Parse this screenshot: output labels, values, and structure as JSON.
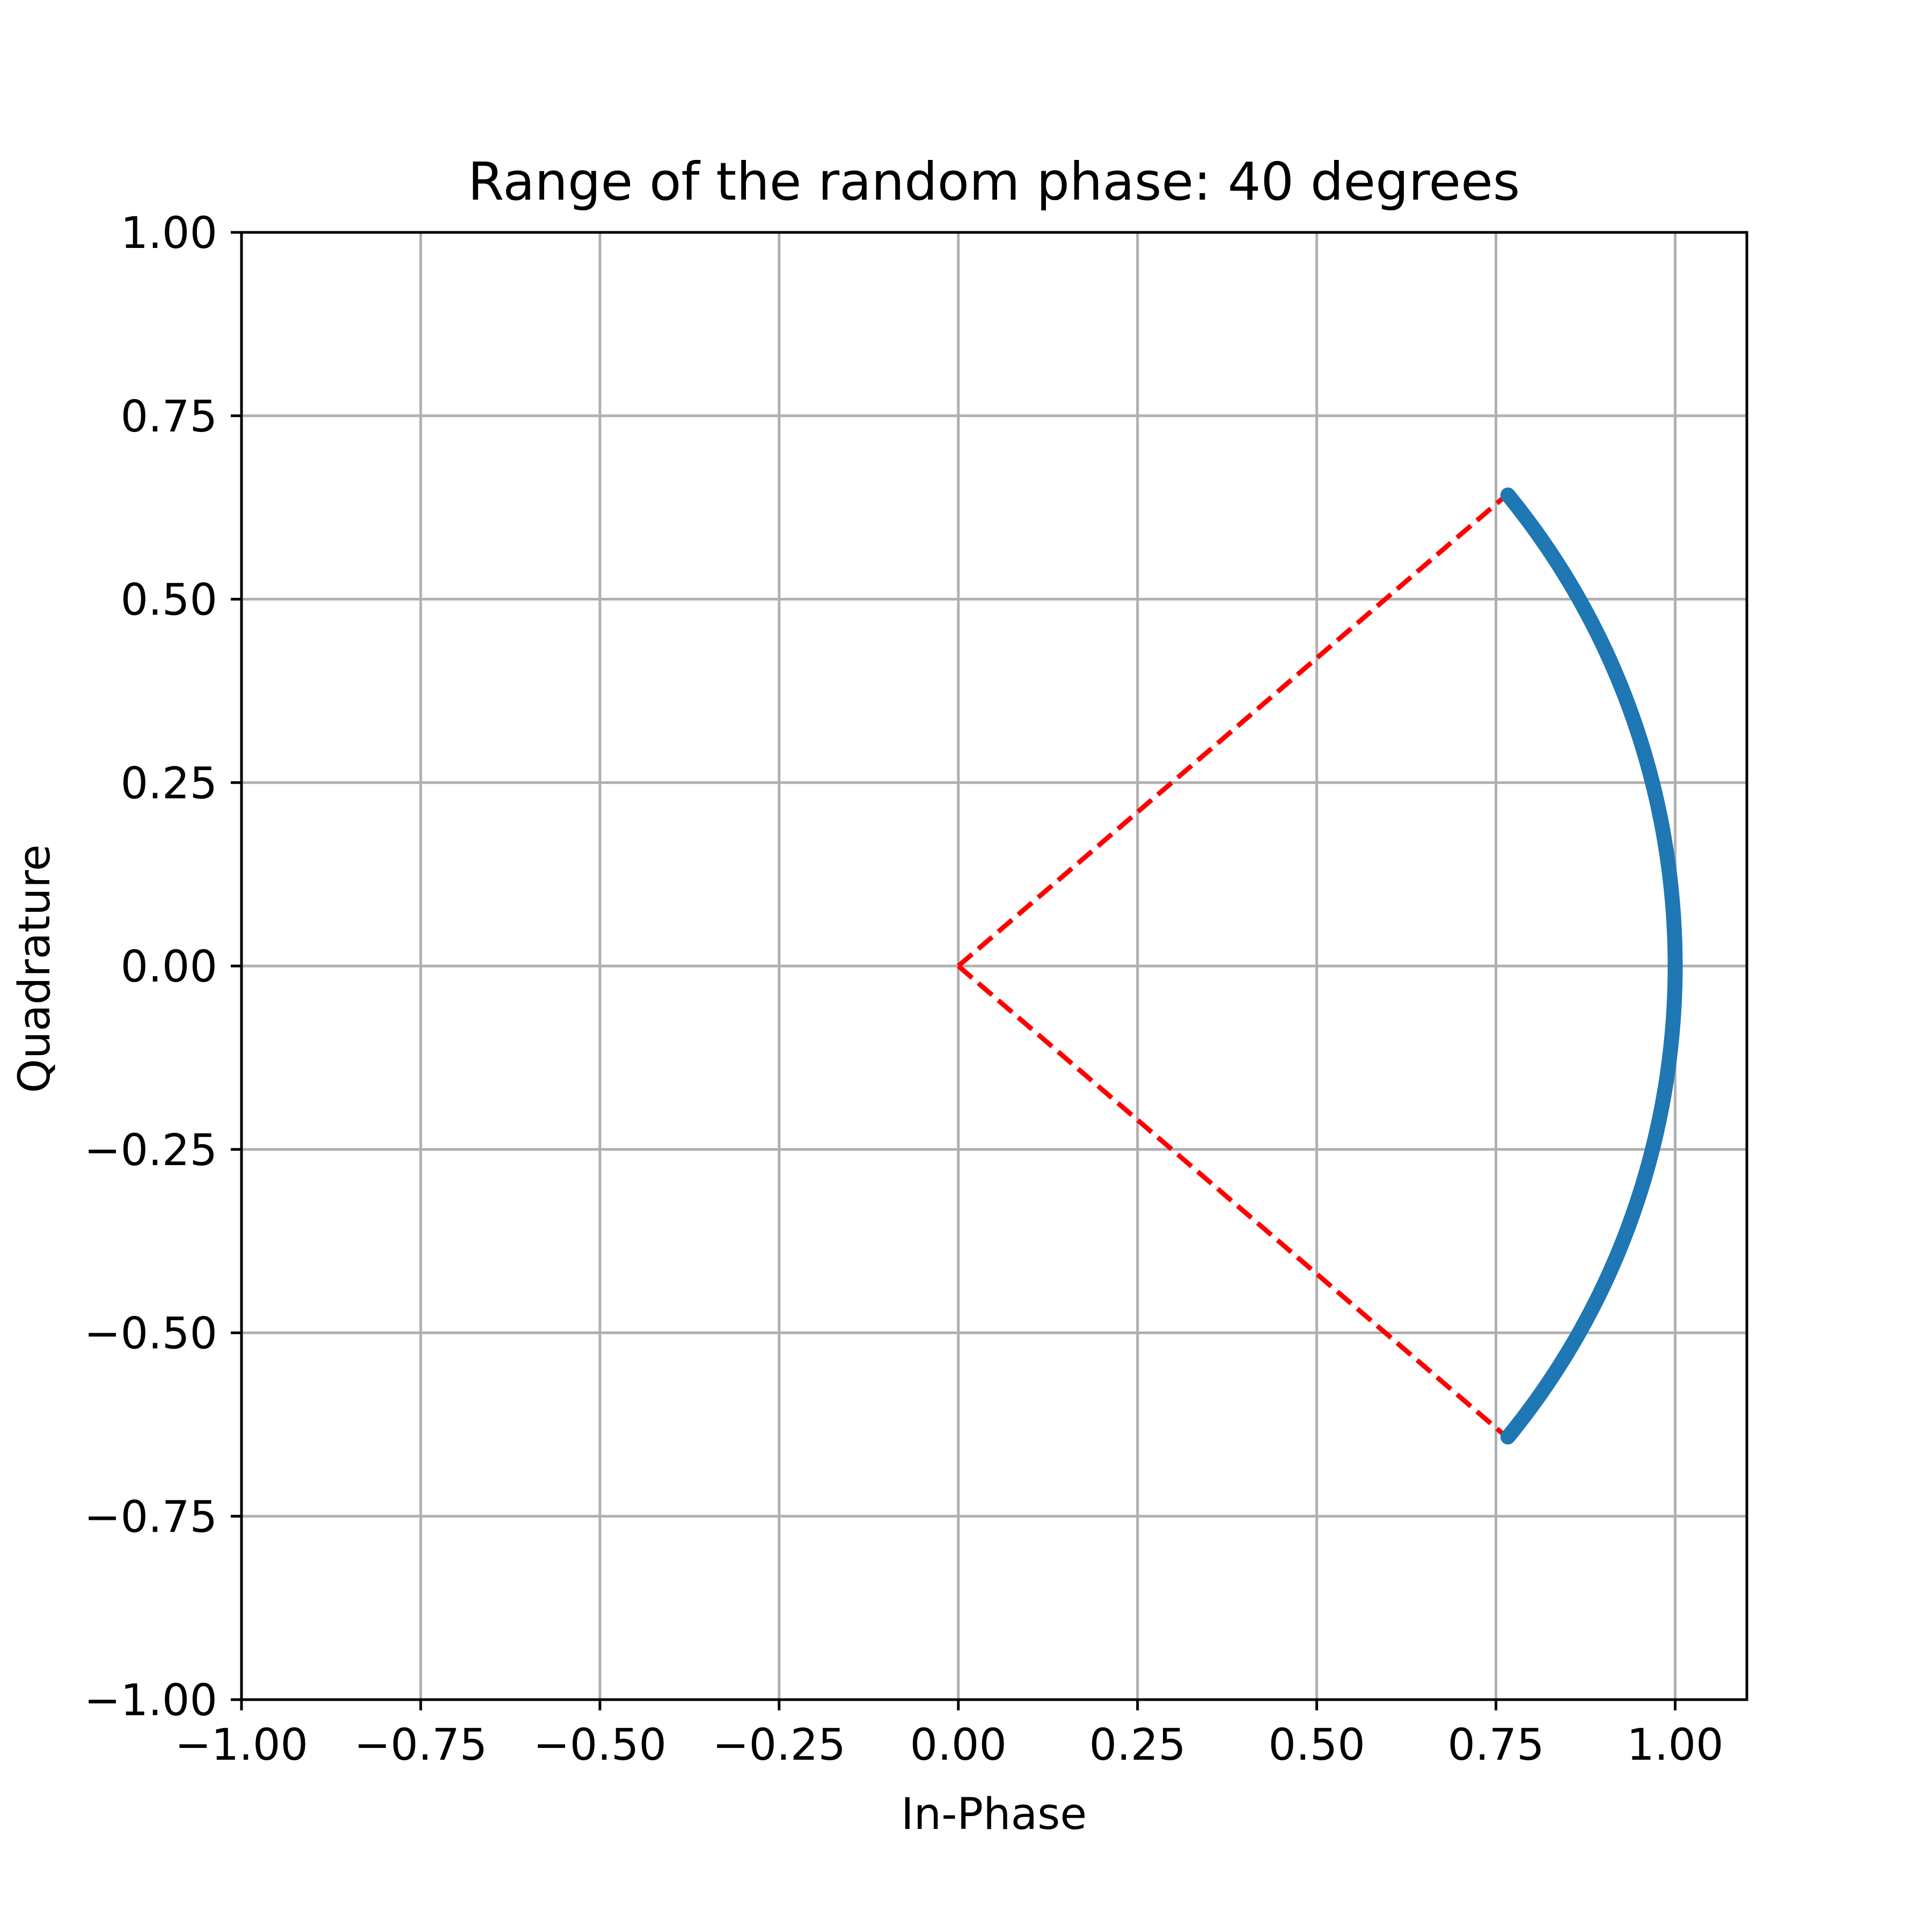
{
  "chart_data": {
    "type": "scatter",
    "title": "Range of the random phase: 40 degrees",
    "xlabel": "In-Phase",
    "ylabel": "Quadrature",
    "xlim": [
      -1.0,
      1.1
    ],
    "ylim": [
      -1.0,
      1.0
    ],
    "x_ticks": [
      -1.0,
      -0.75,
      -0.5,
      -0.25,
      0.0,
      0.25,
      0.5,
      0.75,
      1.0
    ],
    "y_ticks": [
      -1.0,
      -0.75,
      -0.5,
      -0.25,
      0.0,
      0.25,
      0.5,
      0.75,
      1.0
    ],
    "x_tick_labels": [
      "−1.00",
      "−0.75",
      "−0.50",
      "−0.25",
      "0.00",
      "0.25",
      "0.50",
      "0.75",
      "1.00"
    ],
    "y_tick_labels": [
      "−1.00",
      "−0.75",
      "−0.50",
      "−0.25",
      "0.00",
      "0.25",
      "0.50",
      "0.75",
      "1.00"
    ],
    "grid": true,
    "scatter": {
      "description_of_set": "unit-magnitude symbols with random phase between -40 and +40 degrees",
      "radius": 1.0,
      "phase_min_deg": -40,
      "phase_max_deg": 40,
      "color": "#1f77b4"
    },
    "boundary_lines": [
      {
        "x": [
          0.0,
          0.766
        ],
        "y": [
          0.0,
          0.643
        ],
        "style": "dashed",
        "color": "#ff0000"
      },
      {
        "x": [
          0.0,
          0.766
        ],
        "y": [
          0.0,
          -0.643
        ],
        "style": "dashed",
        "color": "#ff0000"
      }
    ]
  }
}
